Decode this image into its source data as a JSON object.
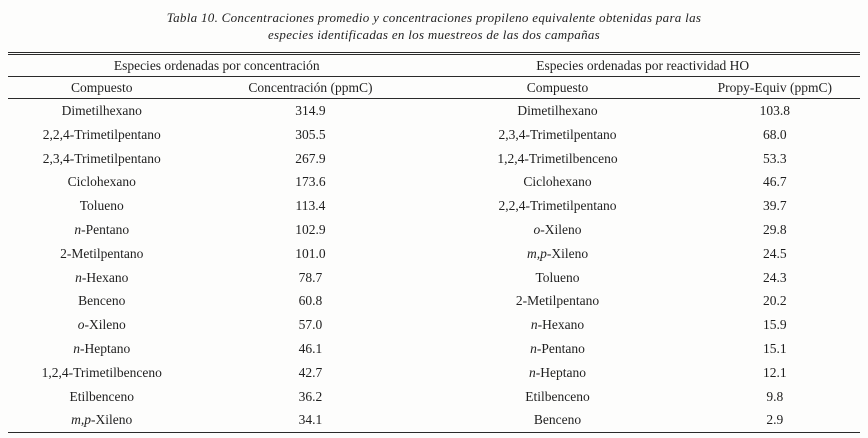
{
  "title": {
    "line1": "Tabla 10. Concentraciones promedio y concentraciones propileno equivalente obtenidas para las",
    "line2": "especies identificadas en los muestreos de las dos campañas"
  },
  "table": {
    "group_headers": [
      "Especies ordenadas por concentración",
      "Especies ordenadas por reactividad HO"
    ],
    "column_headers": [
      "Compuesto",
      "Concentración (ppmC)",
      "Compuesto",
      "Propy-Equiv (ppmC)"
    ],
    "rows": [
      [
        "Dimetilhexano",
        "314.9",
        "Dimetilhexano",
        "103.8"
      ],
      [
        "2,2,4-Trimetilpentano",
        "305.5",
        "2,3,4-Trimetilpentano",
        "68.0"
      ],
      [
        "2,3,4-Trimetilpentano",
        "267.9",
        "1,2,4-Trimetilbenceno",
        "53.3"
      ],
      [
        "Ciclohexano",
        "173.6",
        "Ciclohexano",
        "46.7"
      ],
      [
        "Tolueno",
        "113.4",
        "2,2,4-Trimetilpentano",
        "39.7"
      ],
      [
        "n-Pentano",
        "102.9",
        "o-Xileno",
        "29.8"
      ],
      [
        "2-Metilpentano",
        "101.0",
        "m,p-Xileno",
        "24.5"
      ],
      [
        "n-Hexano",
        "78.7",
        "Tolueno",
        "24.3"
      ],
      [
        "Benceno",
        "60.8",
        "2-Metilpentano",
        "20.2"
      ],
      [
        "o-Xileno",
        "57.0",
        "n-Hexano",
        "15.9"
      ],
      [
        "n-Heptano",
        "46.1",
        "n-Pentano",
        "15.1"
      ],
      [
        "1,2,4-Trimetilbenceno",
        "42.7",
        "n-Heptano",
        "12.1"
      ],
      [
        "Etilbenceno",
        "36.2",
        "Etilbenceno",
        "9.8"
      ],
      [
        "m,p-Xileno",
        "34.1",
        "Benceno",
        "2.9"
      ]
    ],
    "colors": {
      "text": "#1f1f1f",
      "rule": "#2a2a2a",
      "background": "#fdfdfc"
    }
  }
}
